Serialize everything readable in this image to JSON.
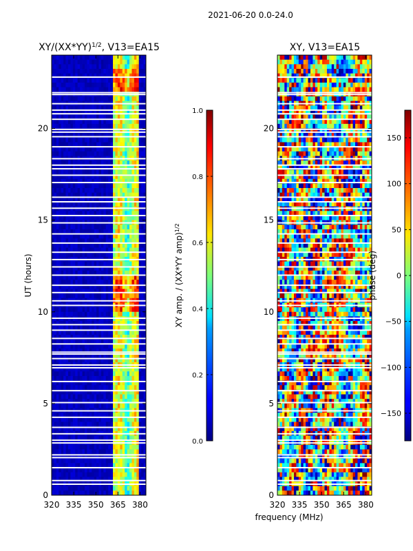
{
  "chart_data": {
    "suptitle": "2021-06-20 0.0-24.0",
    "shared_xlabel": "frequency (MHz)",
    "panels": [
      {
        "type": "heatmap",
        "title_main": "XY/(XX*YY)",
        "title_sup": "1/2",
        "title_rest": ", V13=EA15",
        "ylabel": "UT (hours)",
        "xlim": [
          320,
          384
        ],
        "ylim": [
          0,
          24
        ],
        "xticks": [
          320,
          335,
          350,
          365,
          380
        ],
        "yticks": [
          0,
          5,
          10,
          15,
          20
        ],
        "colorbar": {
          "label_main": "XY amp. / (XX*YY amp)",
          "label_sup": "1/2",
          "range": [
            0.0,
            1.0
          ],
          "ticks": [
            "0.0",
            "0.2",
            "0.4",
            "0.6",
            "0.8",
            "1.0"
          ],
          "colormap": "jet"
        }
      },
      {
        "type": "heatmap",
        "title": "XY, V13=EA15",
        "xlim": [
          320,
          384
        ],
        "ylim": [
          0,
          24
        ],
        "xticks": [
          320,
          335,
          350,
          365,
          380
        ],
        "yticks": [
          0,
          5,
          10,
          15,
          20
        ],
        "colorbar": {
          "label": "phase (deg)",
          "range": [
            -180,
            180
          ],
          "ticks": [
            "−150",
            "−100",
            "−50",
            "0",
            "50",
            "100",
            "150"
          ],
          "colormap": "jet"
        }
      }
    ],
    "flagged_hours": [
      0.6,
      0.8,
      1.5,
      2.05,
      2.2,
      2.85,
      3.0,
      3.35,
      3.7,
      4.25,
      4.6,
      5.05,
      5.7,
      6.2,
      6.95,
      7.1,
      7.45,
      7.7,
      7.8,
      8.25,
      8.55,
      9.0,
      9.3,
      9.65,
      10.35,
      10.6,
      11.05,
      11.45,
      12.0,
      12.45,
      12.85,
      13.25,
      13.75,
      14.25,
      14.85,
      15.25,
      15.65,
      16.0,
      16.25,
      17.05,
      17.45,
      17.8,
      18.0,
      18.35,
      19.0,
      19.55,
      19.8,
      19.95,
      20.5,
      20.8,
      21.0,
      21.35,
      21.85,
      21.95,
      22.8
    ]
  }
}
